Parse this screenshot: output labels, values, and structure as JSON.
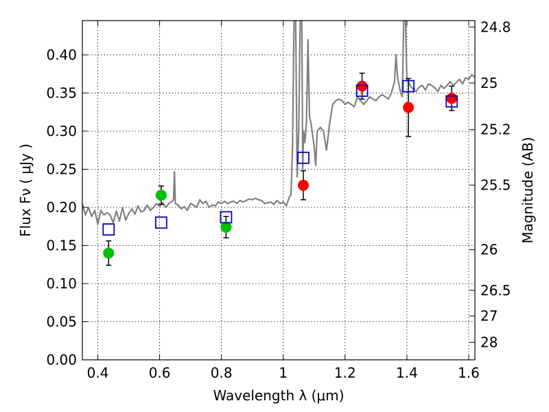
{
  "chart_data": {
    "type": "scatter",
    "xlabel": "Wavelength  λ (μm)",
    "ylabel": "Flux  Fν  ( μJy )",
    "ylabel_right": "Magnitude (AB)",
    "xlim": [
      0.35,
      1.62
    ],
    "ylim": [
      0.0,
      0.445
    ],
    "grid": true,
    "x_ticks": [
      {
        "value": 0.4,
        "label": "0.4"
      },
      {
        "value": 0.6,
        "label": "0.6"
      },
      {
        "value": 0.8,
        "label": "0.8"
      },
      {
        "value": 1.0,
        "label": "1"
      },
      {
        "value": 1.2,
        "label": "1.2"
      },
      {
        "value": 1.4,
        "label": "1.4"
      },
      {
        "value": 1.6,
        "label": "1.6"
      }
    ],
    "y_ticks": [
      {
        "value": 0.0,
        "label": "0.00"
      },
      {
        "value": 0.05,
        "label": "0.05"
      },
      {
        "value": 0.1,
        "label": "0.10"
      },
      {
        "value": 0.15,
        "label": "0.15"
      },
      {
        "value": 0.2,
        "label": "0.20"
      },
      {
        "value": 0.25,
        "label": "0.25"
      },
      {
        "value": 0.3,
        "label": "0.30"
      },
      {
        "value": 0.35,
        "label": "0.35"
      },
      {
        "value": 0.4,
        "label": "0.40"
      }
    ],
    "right_ticks": [
      {
        "mag": 24.8,
        "label": "24.8"
      },
      {
        "mag": 25.0,
        "label": "25"
      },
      {
        "mag": 25.2,
        "label": "25.2"
      },
      {
        "mag": 25.5,
        "label": "25.5"
      },
      {
        "mag": 26.0,
        "label": "26"
      },
      {
        "mag": 26.5,
        "label": "26.5"
      },
      {
        "mag": 27.0,
        "label": "27"
      },
      {
        "mag": 28.0,
        "label": "28"
      }
    ],
    "series": [
      {
        "kind": "spectrum_line",
        "color": "#808080",
        "points": [
          [
            0.35,
            0.205
          ],
          [
            0.36,
            0.19
          ],
          [
            0.37,
            0.2
          ],
          [
            0.38,
            0.188
          ],
          [
            0.39,
            0.196
          ],
          [
            0.4,
            0.178
          ],
          [
            0.41,
            0.196
          ],
          [
            0.42,
            0.19
          ],
          [
            0.43,
            0.193
          ],
          [
            0.44,
            0.19
          ],
          [
            0.45,
            0.18
          ],
          [
            0.46,
            0.195
          ],
          [
            0.47,
            0.182
          ],
          [
            0.48,
            0.2
          ],
          [
            0.49,
            0.183
          ],
          [
            0.5,
            0.192
          ],
          [
            0.51,
            0.198
          ],
          [
            0.52,
            0.191
          ],
          [
            0.53,
            0.202
          ],
          [
            0.54,
            0.194
          ],
          [
            0.55,
            0.196
          ],
          [
            0.56,
            0.203
          ],
          [
            0.57,
            0.196
          ],
          [
            0.58,
            0.2
          ],
          [
            0.59,
            0.205
          ],
          [
            0.6,
            0.201
          ],
          [
            0.61,
            0.206
          ],
          [
            0.62,
            0.2
          ],
          [
            0.63,
            0.205
          ],
          [
            0.64,
            0.208
          ],
          [
            0.645,
            0.21
          ],
          [
            0.648,
            0.247
          ],
          [
            0.651,
            0.205
          ],
          [
            0.66,
            0.203
          ],
          [
            0.67,
            0.198
          ],
          [
            0.68,
            0.201
          ],
          [
            0.69,
            0.196
          ],
          [
            0.7,
            0.205
          ],
          [
            0.71,
            0.203
          ],
          [
            0.72,
            0.2
          ],
          [
            0.73,
            0.21
          ],
          [
            0.74,
            0.205
          ],
          [
            0.75,
            0.208
          ],
          [
            0.76,
            0.2
          ],
          [
            0.77,
            0.203
          ],
          [
            0.78,
            0.202
          ],
          [
            0.79,
            0.207
          ],
          [
            0.8,
            0.205
          ],
          [
            0.81,
            0.208
          ],
          [
            0.82,
            0.205
          ],
          [
            0.83,
            0.207
          ],
          [
            0.84,
            0.208
          ],
          [
            0.85,
            0.205
          ],
          [
            0.86,
            0.209
          ],
          [
            0.87,
            0.207
          ],
          [
            0.88,
            0.209
          ],
          [
            0.89,
            0.211
          ],
          [
            0.9,
            0.21
          ],
          [
            0.91,
            0.212
          ],
          [
            0.92,
            0.21
          ],
          [
            0.93,
            0.209
          ],
          [
            0.94,
            0.205
          ],
          [
            0.95,
            0.206
          ],
          [
            0.96,
            0.207
          ],
          [
            0.97,
            0.204
          ],
          [
            0.98,
            0.209
          ],
          [
            0.99,
            0.205
          ],
          [
            1.0,
            0.207
          ],
          [
            1.01,
            0.202
          ],
          [
            1.02,
            0.214
          ],
          [
            1.025,
            0.216
          ],
          [
            1.03,
            0.28
          ],
          [
            1.035,
            0.45
          ],
          [
            1.04,
            0.45
          ],
          [
            1.045,
            0.24
          ],
          [
            1.05,
            0.3
          ],
          [
            1.055,
            0.45
          ],
          [
            1.06,
            0.45
          ],
          [
            1.063,
            0.25
          ],
          [
            1.066,
            0.3
          ],
          [
            1.07,
            0.285
          ],
          [
            1.075,
            0.31
          ],
          [
            1.08,
            0.42
          ],
          [
            1.085,
            0.32
          ],
          [
            1.09,
            0.31
          ],
          [
            1.1,
            0.28
          ],
          [
            1.105,
            0.255
          ],
          [
            1.11,
            0.3
          ],
          [
            1.12,
            0.305
          ],
          [
            1.13,
            0.3
          ],
          [
            1.14,
            0.275
          ],
          [
            1.15,
            0.31
          ],
          [
            1.16,
            0.335
          ],
          [
            1.17,
            0.34
          ],
          [
            1.18,
            0.342
          ],
          [
            1.19,
            0.34
          ],
          [
            1.2,
            0.335
          ],
          [
            1.21,
            0.338
          ],
          [
            1.22,
            0.335
          ],
          [
            1.23,
            0.332
          ],
          [
            1.24,
            0.345
          ],
          [
            1.25,
            0.34
          ],
          [
            1.26,
            0.335
          ],
          [
            1.27,
            0.34
          ],
          [
            1.28,
            0.345
          ],
          [
            1.29,
            0.342
          ],
          [
            1.3,
            0.34
          ],
          [
            1.31,
            0.345
          ],
          [
            1.32,
            0.348
          ],
          [
            1.33,
            0.345
          ],
          [
            1.34,
            0.342
          ],
          [
            1.35,
            0.35
          ],
          [
            1.36,
            0.365
          ],
          [
            1.365,
            0.4
          ],
          [
            1.37,
            0.37
          ],
          [
            1.38,
            0.35
          ],
          [
            1.385,
            0.345
          ],
          [
            1.39,
            0.45
          ],
          [
            1.395,
            0.45
          ],
          [
            1.4,
            0.37
          ],
          [
            1.41,
            0.36
          ],
          [
            1.42,
            0.355
          ],
          [
            1.43,
            0.352
          ],
          [
            1.44,
            0.358
          ],
          [
            1.45,
            0.36
          ],
          [
            1.46,
            0.354
          ],
          [
            1.47,
            0.362
          ],
          [
            1.48,
            0.36
          ],
          [
            1.49,
            0.357
          ],
          [
            1.5,
            0.352
          ],
          [
            1.51,
            0.36
          ],
          [
            1.52,
            0.356
          ],
          [
            1.53,
            0.36
          ],
          [
            1.54,
            0.365
          ],
          [
            1.55,
            0.36
          ],
          [
            1.56,
            0.364
          ],
          [
            1.57,
            0.368
          ],
          [
            1.58,
            0.362
          ],
          [
            1.59,
            0.37
          ],
          [
            1.6,
            0.368
          ],
          [
            1.61,
            0.374
          ],
          [
            1.62,
            0.371
          ]
        ]
      },
      {
        "kind": "points",
        "marker": "circle",
        "color": "#00c000",
        "points": [
          {
            "x": 0.435,
            "y": 0.14,
            "err": 0.016
          },
          {
            "x": 0.605,
            "y": 0.216,
            "err": 0.012
          },
          {
            "x": 0.815,
            "y": 0.174,
            "err": 0.014
          }
        ]
      },
      {
        "kind": "points",
        "marker": "circle",
        "color": "#ff0000",
        "points": [
          {
            "x": 1.065,
            "y": 0.229,
            "err": 0.019
          },
          {
            "x": 1.255,
            "y": 0.359,
            "err": 0.017
          },
          {
            "x": 1.405,
            "y": 0.331,
            "err": 0.038
          },
          {
            "x": 1.545,
            "y": 0.343,
            "err": 0.016
          }
        ]
      },
      {
        "kind": "points",
        "marker": "open-square",
        "color": "#0000cc",
        "points": [
          {
            "x": 0.435,
            "y": 0.171
          },
          {
            "x": 0.605,
            "y": 0.18
          },
          {
            "x": 0.815,
            "y": 0.187
          },
          {
            "x": 1.065,
            "y": 0.265
          },
          {
            "x": 1.255,
            "y": 0.353
          },
          {
            "x": 1.405,
            "y": 0.359
          },
          {
            "x": 1.545,
            "y": 0.339
          }
        ]
      }
    ]
  }
}
